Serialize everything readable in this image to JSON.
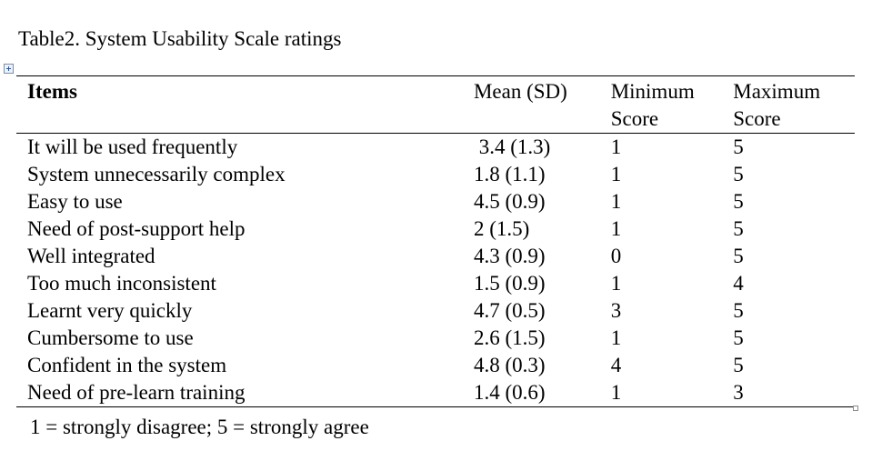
{
  "caption": "Table2. System Usability Scale ratings",
  "table": {
    "headers": {
      "items": "Items",
      "mean": "Mean (SD)",
      "min_line1": "Minimum",
      "min_line2": "Score",
      "max_line1": "Maximum",
      "max_line2": "Score"
    },
    "rows": [
      {
        "item": "It will be used frequently",
        "mean": " 3.4 (1.3)",
        "min": "1",
        "max": "5"
      },
      {
        "item": "System unnecessarily complex",
        "mean": "1.8 (1.1)",
        "min": "1",
        "max": "5"
      },
      {
        "item": "Easy to use",
        "mean": "4.5 (0.9)",
        "min": "1",
        "max": "5"
      },
      {
        "item": "Need of post-support help",
        "mean": "2 (1.5)",
        "min": "1",
        "max": "5"
      },
      {
        "item": "Well integrated",
        "mean": "4.3 (0.9)",
        "min": "0",
        "max": "5"
      },
      {
        "item": "Too much inconsistent",
        "mean": "1.5 (0.9)",
        "min": "1",
        "max": "4"
      },
      {
        "item": "Learnt very quickly",
        "mean": "4.7 (0.5)",
        "min": "3",
        "max": "5"
      },
      {
        "item": "Cumbersome to use",
        "mean": "2.6 (1.5)",
        "min": "1",
        "max": "5"
      },
      {
        "item": "Confident in the system",
        "mean": "4.8 (0.3)",
        "min": "4",
        "max": "5"
      },
      {
        "item": "Need of pre-learn training",
        "mean": "1.4 (0.6)",
        "min": "1",
        "max": "3"
      }
    ]
  },
  "note": "1 = strongly disagree; 5 = strongly agree",
  "icons": {
    "table_move_handle": "table-move-handle-icon",
    "table_resize_handle": "table-resize-handle-icon"
  }
}
